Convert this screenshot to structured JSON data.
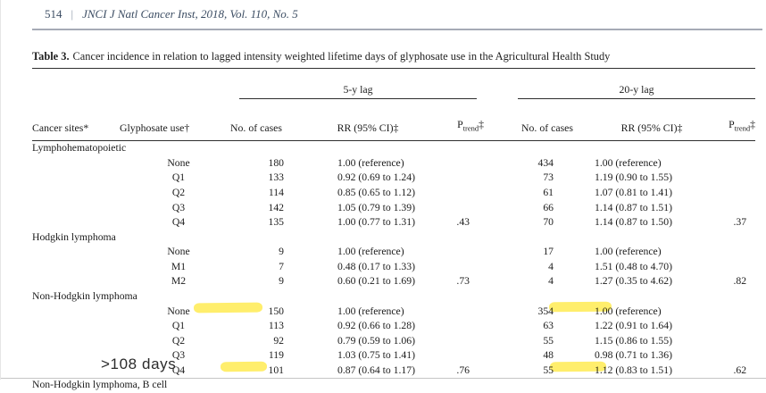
{
  "page_header": {
    "page_number": "514",
    "separator": "|",
    "journal": "JNCI J Natl Cancer Inst, 2018, Vol. 110, No. 5"
  },
  "caption": {
    "label": "Table 3.",
    "text": "Cancer incidence in relation to lagged intensity weighted lifetime days of glyphosate use in the Agricultural Health Study"
  },
  "table": {
    "groups": {
      "lag5": "5-y lag",
      "lag20": "20-y lag"
    },
    "col_headers": {
      "cancer_sites": "Cancer sites*",
      "glyphosate_use": "Glyphosate use†",
      "cases": "No. of cases",
      "rr": "RR (95% CI)‡",
      "p": "P",
      "p_sub": "trend",
      "p_mark": "‡"
    },
    "sections": [
      {
        "label": "Lymphohematopoietic",
        "rows": [
          {
            "use": "None",
            "cases_5y": "180",
            "rr_5y": "1.00 (reference)",
            "p_5y": "",
            "cases_20y": "434",
            "rr_20y": "1.00 (reference)",
            "p_20y": ""
          },
          {
            "use": "Q1",
            "cases_5y": "133",
            "rr_5y": "0.92 (0.69 to 1.24)",
            "p_5y": "",
            "cases_20y": "73",
            "rr_20y": "1.19 (0.90 to 1.55)",
            "p_20y": ""
          },
          {
            "use": "Q2",
            "cases_5y": "114",
            "rr_5y": "0.85 (0.65 to 1.12)",
            "p_5y": "",
            "cases_20y": "61",
            "rr_20y": "1.07 (0.81 to 1.41)",
            "p_20y": ""
          },
          {
            "use": "Q3",
            "cases_5y": "142",
            "rr_5y": "1.05 (0.79 to 1.39)",
            "p_5y": "",
            "cases_20y": "66",
            "rr_20y": "1.14 (0.87 to 1.51)",
            "p_20y": ""
          },
          {
            "use": "Q4",
            "cases_5y": "135",
            "rr_5y": "1.00 (0.77 to 1.31)",
            "p_5y": ".43",
            "cases_20y": "70",
            "rr_20y": "1.14 (0.87 to 1.50)",
            "p_20y": ".37"
          }
        ]
      },
      {
        "label": "Hodgkin lymphoma",
        "rows": [
          {
            "use": "None",
            "cases_5y": "9",
            "rr_5y": "1.00 (reference)",
            "p_5y": "",
            "cases_20y": "17",
            "rr_20y": "1.00 (reference)",
            "p_20y": ""
          },
          {
            "use": "M1",
            "cases_5y": "7",
            "rr_5y": "0.48 (0.17 to 1.33)",
            "p_5y": "",
            "cases_20y": "4",
            "rr_20y": "1.51 (0.48 to 4.70)",
            "p_20y": ""
          },
          {
            "use": "M2",
            "cases_5y": "9",
            "rr_5y": "0.60 (0.21 to 1.69)",
            "p_5y": ".73",
            "cases_20y": "4",
            "rr_20y": "1.27 (0.35 to 4.62)",
            "p_20y": ".82"
          }
        ]
      },
      {
        "label": "Non-Hodgkin lymphoma",
        "rows": [
          {
            "use": "None",
            "cases_5y": "150",
            "rr_5y": "1.00 (reference)",
            "p_5y": "",
            "cases_20y": "354",
            "rr_20y": "1.00 (reference)",
            "p_20y": ""
          },
          {
            "use": "Q1",
            "cases_5y": "113",
            "rr_5y": "0.92 (0.66 to 1.28)",
            "p_5y": "",
            "cases_20y": "63",
            "rr_20y": "1.22 (0.91 to 1.64)",
            "p_20y": ""
          },
          {
            "use": "Q2",
            "cases_5y": "92",
            "rr_5y": "0.79 (0.59 to 1.06)",
            "p_5y": "",
            "cases_20y": "55",
            "rr_20y": "1.15 (0.86 to 1.55)",
            "p_20y": ""
          },
          {
            "use": "Q3",
            "cases_5y": "119",
            "rr_5y": "1.03 (0.75 to 1.41)",
            "p_5y": "",
            "cases_20y": "48",
            "rr_20y": "0.98 (0.71 to 1.36)",
            "p_20y": ""
          },
          {
            "use": "Q4",
            "cases_5y": "101",
            "rr_5y": "0.87 (0.64 to 1.17)",
            "p_5y": ".76",
            "cases_20y": "55",
            "rr_20y": "1.12 (0.83 to 1.51)",
            "p_20y": ".62"
          }
        ]
      },
      {
        "label": "Non-Hodgkin lymphoma, B cell",
        "rows": []
      }
    ]
  },
  "annotations": {
    "note": ">108 days",
    "highlight_color": "#ffe93a",
    "highlights": [
      {
        "location": "Non-Hodgkin lymphoma / None row, after label (5-y lag side)"
      },
      {
        "location": "Non-Hodgkin lymphoma / None row, after 354 (20-y lag side)"
      },
      {
        "location": "Non-Hodgkin lymphoma / Q4 row, after label (5-y lag side)"
      },
      {
        "location": "Non-Hodgkin lymphoma / Q4 row, after 55 (20-y lag side)"
      }
    ]
  }
}
